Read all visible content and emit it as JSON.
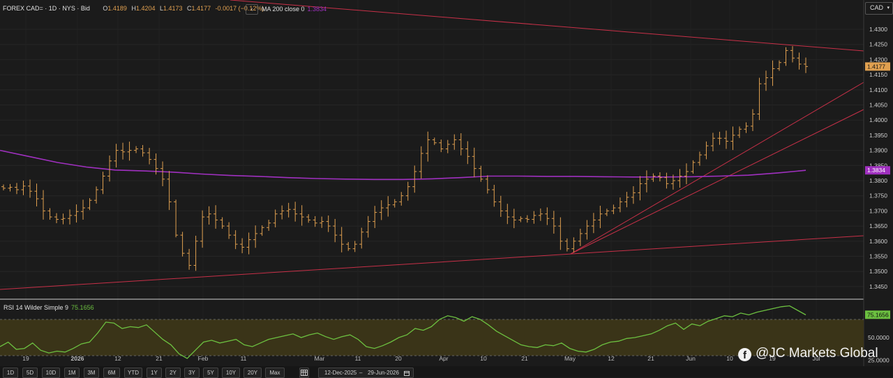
{
  "legend": {
    "symbol": "FOREX CAD=",
    "interval": "1D",
    "source": "NYS",
    "price_type": "Bid",
    "open_label": "O",
    "open": "1.4189",
    "high_label": "H",
    "high": "1.4204",
    "low_label": "L",
    "low": "1.4173",
    "close_label": "C",
    "close": "1.4177",
    "change": "-0.0017 (−0.12%)"
  },
  "collapse_icon": "chevron-left-icon",
  "collapse_glyph": "‹",
  "ma_legend": {
    "label": "MA 200 close 0",
    "value": "1.3834"
  },
  "currency": {
    "label": "CAD",
    "caret": "▾"
  },
  "rsi_legend": {
    "label": "RSI 14 Wilder Simple 9",
    "value": "75.1656"
  },
  "watermark": {
    "text": "@JC Markets Global",
    "icon": "facebook-icon",
    "glyph": "f"
  },
  "toolbar": {
    "ranges": [
      "1D",
      "5D",
      "10D",
      "1M",
      "3M",
      "6M",
      "YTD",
      "1Y",
      "2Y",
      "3Y",
      "5Y",
      "10Y",
      "20Y",
      "Max"
    ],
    "table_icon": "table-icon",
    "date_from": "12-Dec-2025",
    "date_sep": "–",
    "date_to": "29-Jun-2026",
    "calendar_icon": "calendar-icon"
  },
  "colors": {
    "background": "#1b1b1b",
    "candle": "#e0a050",
    "ma": "#a030c0",
    "trendline": "#c83048",
    "rsi_line": "#6cc040",
    "rsi_band": "#3a3418"
  },
  "chart_data": [
    {
      "type": "ohlc",
      "title": "FOREX CAD=",
      "ylim": [
        1.34,
        1.434
      ],
      "y_ticks": [
        "1.3450",
        "1.3500",
        "1.3550",
        "1.3600",
        "1.3650",
        "1.3700",
        "1.3750",
        "1.3800",
        "1.3850",
        "1.3900",
        "1.3950",
        "1.4000",
        "1.4050",
        "1.4100",
        "1.4150",
        "1.4200",
        "1.4250",
        "1.4300"
      ],
      "x_ticks": [
        "19",
        "2026",
        "12",
        "21",
        "Feb",
        "11",
        "Mar",
        "11",
        "20",
        "Apr",
        "10",
        "21",
        "May",
        "12",
        "21",
        "Jun",
        "10",
        "19",
        "Jul"
      ],
      "last_price": "1.4177",
      "ma_last": "1.3834",
      "ma_200": [
        1.39,
        1.388,
        1.386,
        1.3845,
        1.3835,
        1.3832,
        1.3828,
        1.3822,
        1.3817,
        1.3814,
        1.381,
        1.3807,
        1.3805,
        1.3804,
        1.3804,
        1.3806,
        1.381,
        1.3815,
        1.3815,
        1.3814,
        1.3814,
        1.3813,
        1.3812,
        1.3812,
        1.3813,
        1.3815,
        1.3818,
        1.3825,
        1.3834
      ],
      "closes": [
        1.3775,
        1.3778,
        1.377,
        1.3782,
        1.3765,
        1.374,
        1.37,
        1.368,
        1.3672,
        1.3675,
        1.3685,
        1.3698,
        1.371,
        1.3735,
        1.377,
        1.3815,
        1.3865,
        1.39,
        1.3895,
        1.39,
        1.3905,
        1.3892,
        1.387,
        1.384,
        1.3805,
        1.373,
        1.362,
        1.356,
        1.352,
        1.36,
        1.368,
        1.369,
        1.367,
        1.365,
        1.362,
        1.359,
        1.358,
        1.3605,
        1.3625,
        1.3645,
        1.366,
        1.369,
        1.37,
        1.3705,
        1.369,
        1.368,
        1.367,
        1.366,
        1.3665,
        1.365,
        1.362,
        1.359,
        1.3575,
        1.359,
        1.363,
        1.3665,
        1.3695,
        1.371,
        1.372,
        1.373,
        1.375,
        1.378,
        1.383,
        1.389,
        1.3935,
        1.3925,
        1.3905,
        1.392,
        1.3935,
        1.3905,
        1.388,
        1.384,
        1.3805,
        1.377,
        1.373,
        1.37,
        1.368,
        1.367,
        1.3675,
        1.3672,
        1.3685,
        1.369,
        1.3675,
        1.365,
        1.36,
        1.3575,
        1.36,
        1.3625,
        1.365,
        1.367,
        1.369,
        1.37,
        1.371,
        1.373,
        1.3745,
        1.376,
        1.379,
        1.3805,
        1.3815,
        1.381,
        1.379,
        1.38,
        1.3815,
        1.383,
        1.386,
        1.3885,
        1.3915,
        1.394,
        1.394,
        1.393,
        1.395,
        1.397,
        1.398,
        1.402,
        1.412,
        1.414,
        1.417,
        1.419,
        1.423,
        1.4205,
        1.4185,
        1.4177
      ]
    },
    {
      "type": "line",
      "title": "RSI 14 Wilder Simple 9",
      "ylim": [
        20,
        90
      ],
      "y_ticks": [
        "50.0000",
        "25.0000"
      ],
      "last_value": "75.1656",
      "values": [
        40,
        45,
        37,
        38,
        44,
        36,
        33,
        35,
        34,
        38,
        43,
        45,
        55,
        67,
        66,
        60,
        62,
        61,
        64,
        56,
        48,
        42,
        32,
        27,
        36,
        45,
        47,
        44,
        46,
        48,
        42,
        40,
        44,
        48,
        50,
        52,
        54,
        50,
        53,
        55,
        51,
        48,
        51,
        53,
        48,
        40,
        38,
        41,
        45,
        50,
        53,
        60,
        58,
        62,
        70,
        74,
        72,
        68,
        73,
        70,
        64,
        57,
        52,
        47,
        42,
        40,
        39,
        42,
        41,
        44,
        38,
        35,
        34,
        37,
        42,
        45,
        46,
        49,
        50,
        52,
        54,
        58,
        63,
        66,
        59,
        65,
        63,
        68,
        71,
        74,
        73,
        77,
        75,
        78,
        80,
        82,
        84,
        85,
        80,
        75
      ]
    }
  ]
}
